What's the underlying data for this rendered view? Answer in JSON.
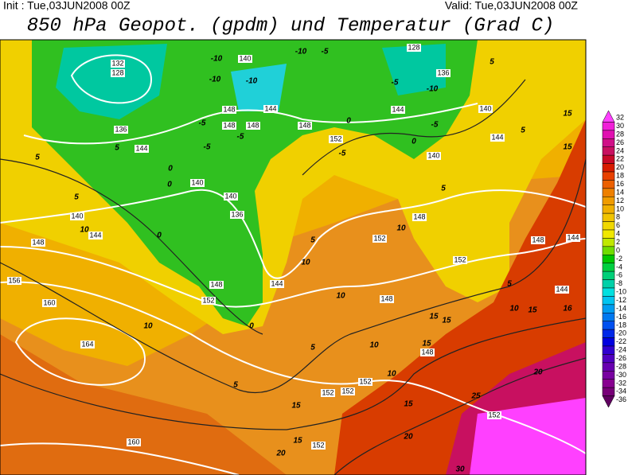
{
  "header": {
    "init": "Init : Tue,03JUN2008 00Z",
    "valid": "Valid: Tue,03JUN2008 00Z",
    "title": "850 hPa Geopot. (gpdm) und Temperatur (Grad C)"
  },
  "colorbar": {
    "levels": [
      32,
      30,
      28,
      26,
      24,
      22,
      20,
      18,
      16,
      14,
      12,
      10,
      8,
      6,
      4,
      2,
      0,
      -2,
      -4,
      -6,
      -8,
      -10,
      -12,
      -14,
      -16,
      -18,
      -20,
      -22,
      -24,
      -26,
      -28,
      -30,
      -32,
      -34,
      -36
    ],
    "colors": [
      "#ff40ff",
      "#f020d8",
      "#e010b0",
      "#d01088",
      "#c81060",
      "#c80828",
      "#d81c00",
      "#e84000",
      "#ec6000",
      "#ee8000",
      "#f09c00",
      "#f0b000",
      "#f0c400",
      "#f0d800",
      "#f0e800",
      "#c0e800",
      "#70dc00",
      "#00c800",
      "#00d040",
      "#00d078",
      "#00d0a8",
      "#00e0e0",
      "#00c4f0",
      "#009cf0",
      "#0078f0",
      "#0050f0",
      "#0028e8",
      "#0000e0",
      "#3000d0",
      "#5000c0",
      "#6800b0",
      "#7800a0",
      "#880090",
      "#780078",
      "#600060"
    ]
  },
  "geopotential_labels": [
    132,
    128,
    136,
    144,
    140,
    144,
    148,
    156,
    160,
    164,
    160,
    140,
    148,
    148,
    148,
    144,
    140,
    140,
    136,
    148,
    152,
    144,
    148,
    152,
    144,
    140,
    144,
    140,
    128,
    136,
    148,
    152,
    152,
    148,
    144,
    144,
    148,
    148,
    152,
    152,
    152,
    152,
    152
  ],
  "temperature_labels": [
    -10,
    -10,
    -5,
    -10,
    -10,
    -5,
    -10,
    -5,
    0,
    0,
    -5,
    5,
    5,
    15,
    15,
    5,
    0,
    0,
    5,
    10,
    10,
    10,
    5,
    10,
    15,
    16,
    15,
    15,
    15,
    10,
    15,
    20,
    20,
    25,
    30,
    5,
    5,
    10,
    10,
    5,
    5,
    5,
    -5,
    -5,
    -5,
    0,
    0,
    15,
    15,
    20,
    10
  ]
}
